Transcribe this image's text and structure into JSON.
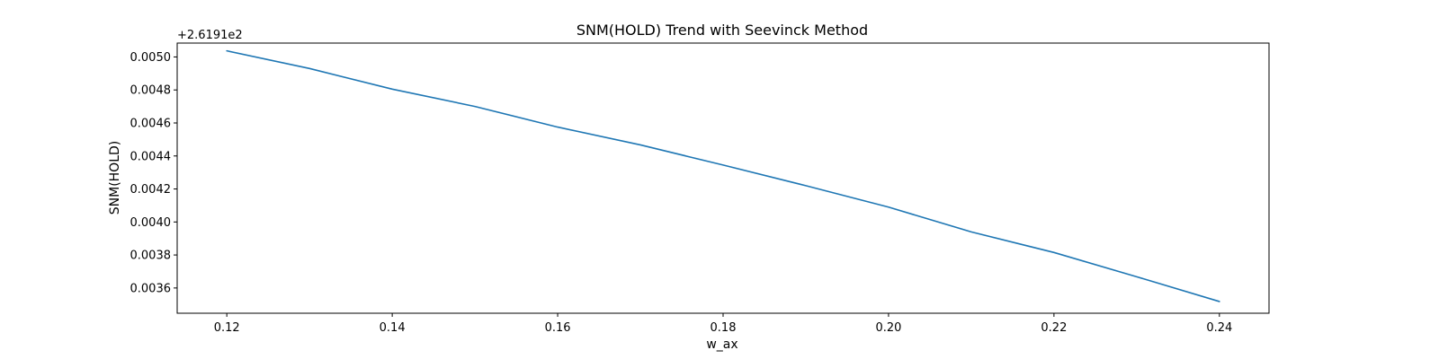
{
  "chart_data": {
    "type": "line",
    "title": "SNM(HOLD) Trend with Seevinck Method",
    "xlabel": "w_ax",
    "ylabel": "SNM(HOLD)",
    "offset_text": "+2.6191e2",
    "xlim": [
      0.114,
      0.246
    ],
    "ylim": [
      0.003447,
      0.005084
    ],
    "x_ticks": [
      0.12,
      0.14,
      0.16,
      0.18,
      0.2,
      0.22,
      0.24
    ],
    "x_tick_labels": [
      "0.12",
      "0.14",
      "0.16",
      "0.18",
      "0.20",
      "0.22",
      "0.24"
    ],
    "y_ticks": [
      0.0036,
      0.0038,
      0.004,
      0.0042,
      0.0044,
      0.0046,
      0.0048,
      0.005
    ],
    "y_tick_labels": [
      "0.0036",
      "0.0038",
      "0.0040",
      "0.0042",
      "0.0044",
      "0.0046",
      "0.0048",
      "0.0050"
    ],
    "grid": false,
    "series": [
      {
        "color": "#1f77b4",
        "x": [
          0.12,
          0.13,
          0.14,
          0.15,
          0.16,
          0.17,
          0.18,
          0.19,
          0.2,
          0.21,
          0.22,
          0.23,
          0.24
        ],
        "y": [
          0.005037,
          0.00493,
          0.004805,
          0.0047,
          0.004575,
          0.004467,
          0.004345,
          0.00422,
          0.00409,
          0.00394,
          0.003815,
          0.003668,
          0.003518
        ]
      }
    ]
  }
}
